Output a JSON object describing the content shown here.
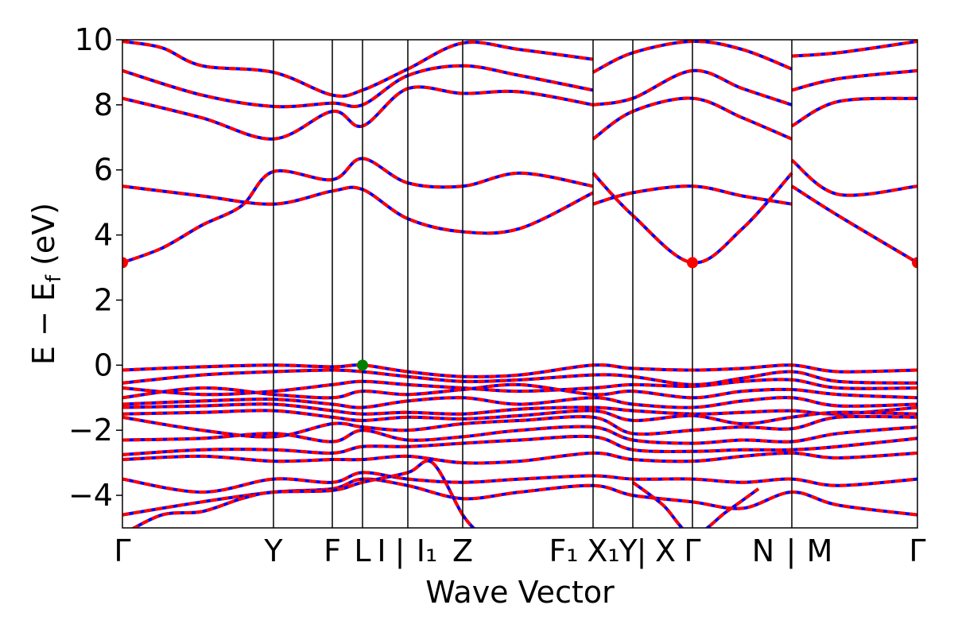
{
  "chart_data": {
    "type": "line",
    "title": "",
    "xlabel": "Wave Vector",
    "ylabel": "E − E_f (eV)",
    "ylabel_main": "E  −  E",
    "ylabel_sub": "f",
    "ylabel_tail": " (eV)",
    "ylim": [
      -5,
      10
    ],
    "yticks": [
      -4,
      -2,
      0,
      2,
      4,
      6,
      8,
      10
    ],
    "ytick_labels": [
      "−4",
      "−2",
      "0",
      "2",
      "4",
      "6",
      "8",
      "10"
    ],
    "xlim": [
      0,
      1
    ],
    "grid": false,
    "high_symmetry_labels": [
      {
        "label": "Γ",
        "x": 0.0
      },
      {
        "label": "Y",
        "x": 0.19
      },
      {
        "label": "F",
        "x": 0.264
      },
      {
        "label": "L",
        "x": 0.302
      },
      {
        "label": "I",
        "x": 0.326
      },
      {
        "label": "|",
        "x": 0.349
      },
      {
        "label": "I₁",
        "x": 0.383
      },
      {
        "label": "Z",
        "x": 0.428
      },
      {
        "label": "F₁",
        "x": 0.555
      },
      {
        "label": "X₁",
        "x": 0.605
      },
      {
        "label": "Y",
        "x": 0.636
      },
      {
        "label": "|",
        "x": 0.653
      },
      {
        "label": "X",
        "x": 0.683
      },
      {
        "label": "Γ",
        "x": 0.717
      },
      {
        "label": "N",
        "x": 0.806
      },
      {
        "label": "|",
        "x": 0.841
      },
      {
        "label": "M",
        "x": 0.877
      },
      {
        "label": "Γ",
        "x": 1.0
      }
    ],
    "vertical_lines": [
      0.19,
      0.264,
      0.302,
      0.359,
      0.428,
      0.592,
      0.642,
      0.717,
      0.842
    ],
    "band_colors": {
      "primary": "#ff0000",
      "secondary": "#0000ff"
    },
    "markers": [
      {
        "name": "cbm-left",
        "x": 0.0,
        "y": 3.15,
        "color": "#ff0000"
      },
      {
        "name": "cbm-gamma",
        "x": 0.717,
        "y": 3.15,
        "color": "#ff0000"
      },
      {
        "name": "cbm-right",
        "x": 1.0,
        "y": 3.15,
        "color": "#ff0000"
      },
      {
        "name": "vbm-L",
        "x": 0.302,
        "y": 0.0,
        "color": "#008000"
      }
    ],
    "series": [
      {
        "x": [
          0,
          0.05,
          0.1,
          0.15,
          0.19,
          0.264,
          0.302,
          0.359,
          0.428,
          0.5,
          0.592
        ],
        "values": [
          3.15,
          3.6,
          4.3,
          4.9,
          5.95,
          5.7,
          6.35,
          5.6,
          5.5,
          5.9,
          5.5
        ]
      },
      {
        "x": [
          0.592,
          0.642,
          0.717,
          0.78,
          0.842
        ],
        "values": [
          5.9,
          4.6,
          3.15,
          4.2,
          5.9
        ]
      },
      {
        "x": [
          0.842,
          0.9,
          1.0
        ],
        "values": [
          6.3,
          5.25,
          5.5
        ]
      },
      {
        "x": [
          0.842,
          0.9,
          1.0
        ],
        "values": [
          5.5,
          4.6,
          3.15
        ]
      },
      {
        "x": [
          0,
          0.1,
          0.19,
          0.264,
          0.302,
          0.359,
          0.428,
          0.5,
          0.592
        ],
        "values": [
          5.5,
          5.2,
          4.95,
          5.35,
          5.4,
          4.5,
          4.1,
          4.2,
          5.3
        ]
      },
      {
        "x": [
          0.592,
          0.642,
          0.717,
          0.78,
          0.842
        ],
        "values": [
          4.95,
          5.3,
          5.5,
          5.2,
          4.95
        ]
      },
      {
        "x": [
          0,
          0.1,
          0.19,
          0.264,
          0.302,
          0.359,
          0.428,
          0.5,
          0.592
        ],
        "values": [
          8.2,
          7.6,
          6.95,
          7.8,
          7.35,
          8.5,
          8.35,
          8.4,
          8.0
        ]
      },
      {
        "x": [
          0.592,
          0.642,
          0.717,
          0.78,
          0.842
        ],
        "values": [
          6.95,
          7.8,
          8.2,
          7.6,
          6.95
        ]
      },
      {
        "x": [
          0.842,
          0.9,
          1.0
        ],
        "values": [
          7.35,
          8.1,
          8.2
        ]
      },
      {
        "x": [
          0,
          0.1,
          0.19,
          0.264,
          0.302,
          0.359,
          0.428,
          0.5,
          0.592
        ],
        "values": [
          9.05,
          8.3,
          7.95,
          8.05,
          8.0,
          8.9,
          9.2,
          8.9,
          8.45
        ]
      },
      {
        "x": [
          0.592,
          0.642,
          0.717,
          0.78,
          0.842
        ],
        "values": [
          8.0,
          8.2,
          9.05,
          8.5,
          8.0
        ]
      },
      {
        "x": [
          0.842,
          0.9,
          1.0
        ],
        "values": [
          8.45,
          8.8,
          9.05
        ]
      },
      {
        "x": [
          0,
          0.05,
          0.1,
          0.19,
          0.264,
          0.302,
          0.359,
          0.428,
          0.5,
          0.592
        ],
        "values": [
          9.95,
          9.75,
          9.2,
          9.0,
          8.3,
          8.45,
          9.1,
          9.9,
          9.7,
          9.4
        ]
      },
      {
        "x": [
          0.592,
          0.642,
          0.717,
          0.78,
          0.842
        ],
        "values": [
          9.0,
          9.6,
          9.95,
          9.7,
          9.1
        ]
      },
      {
        "x": [
          0.842,
          0.9,
          1.0
        ],
        "values": [
          9.5,
          9.6,
          9.95
        ]
      },
      {
        "x": [
          0,
          0.1,
          0.19,
          0.264,
          0.302,
          0.359,
          0.428,
          0.5,
          0.592,
          0.642,
          0.717,
          0.78,
          0.842,
          0.9,
          1.0
        ],
        "values": [
          -0.15,
          -0.05,
          0.0,
          -0.05,
          0.0,
          -0.2,
          -0.35,
          -0.3,
          0.0,
          -0.1,
          -0.15,
          -0.1,
          0.0,
          -0.2,
          -0.15
        ]
      },
      {
        "x": [
          0,
          0.1,
          0.19,
          0.264,
          0.302,
          0.359,
          0.428,
          0.5,
          0.592,
          0.642,
          0.717,
          0.78,
          0.842,
          0.9,
          1.0
        ],
        "values": [
          -0.55,
          -0.3,
          -0.2,
          -0.15,
          -0.2,
          -0.35,
          -0.5,
          -0.45,
          -0.3,
          -0.35,
          -0.6,
          -0.4,
          -0.2,
          -0.5,
          -0.55
        ]
      },
      {
        "x": [
          0,
          0.1,
          0.19,
          0.264,
          0.302,
          0.359,
          0.428,
          0.5,
          0.592,
          0.642,
          0.717,
          0.78,
          0.842,
          0.9,
          1.0
        ],
        "values": [
          -0.7,
          -0.9,
          -0.8,
          -0.6,
          -0.5,
          -0.6,
          -0.7,
          -0.8,
          -0.7,
          -0.6,
          -0.65,
          -0.5,
          -0.45,
          -0.7,
          -0.7
        ]
      },
      {
        "x": [
          0,
          0.1,
          0.19,
          0.264,
          0.302,
          0.359,
          0.428,
          0.5,
          0.592,
          0.642,
          0.717,
          0.78,
          0.842,
          0.9,
          1.0
        ],
        "values": [
          -1.0,
          -0.7,
          -0.9,
          -1.0,
          -0.8,
          -0.9,
          -0.75,
          -0.6,
          -0.9,
          -0.8,
          -1.0,
          -0.8,
          -0.75,
          -0.9,
          -1.0
        ]
      },
      {
        "x": [
          0,
          0.1,
          0.19,
          0.264,
          0.302,
          0.359,
          0.428,
          0.5,
          0.592,
          0.642,
          0.717,
          0.78,
          0.842,
          0.9,
          1.0
        ],
        "values": [
          -1.2,
          -1.1,
          -1.05,
          -1.2,
          -1.3,
          -1.1,
          -1.0,
          -1.2,
          -1.0,
          -1.2,
          -1.3,
          -1.1,
          -1.0,
          -1.25,
          -1.2
        ]
      },
      {
        "x": [
          0,
          0.1,
          0.19,
          0.264,
          0.302,
          0.359,
          0.428,
          0.5,
          0.592,
          0.642,
          0.717,
          0.78,
          0.842,
          0.9,
          1.0
        ],
        "values": [
          -1.3,
          -1.25,
          -1.2,
          -1.4,
          -1.5,
          -1.45,
          -1.5,
          -1.35,
          -1.3,
          -1.4,
          -1.5,
          -1.45,
          -1.4,
          -1.5,
          -1.3
        ]
      },
      {
        "x": [
          0,
          0.1,
          0.19,
          0.264,
          0.302,
          0.359,
          0.428,
          0.5,
          0.592,
          0.642,
          0.717,
          0.78,
          0.842,
          0.9,
          1.0
        ],
        "values": [
          -1.5,
          -1.45,
          -1.4,
          -1.6,
          -1.7,
          -1.6,
          -1.65,
          -1.55,
          -1.4,
          -1.7,
          -1.55,
          -1.8,
          -1.6,
          -1.45,
          -1.5
        ]
      },
      {
        "x": [
          0,
          0.1,
          0.19,
          0.264,
          0.302,
          0.359,
          0.428,
          0.5,
          0.592,
          0.642,
          0.717,
          0.78,
          0.842,
          0.9,
          1.0
        ],
        "values": [
          -1.6,
          -2.0,
          -2.2,
          -1.8,
          -1.9,
          -2.0,
          -1.8,
          -1.7,
          -1.6,
          -2.1,
          -2.0,
          -1.9,
          -1.95,
          -1.6,
          -1.6
        ]
      },
      {
        "x": [
          0,
          0.1,
          0.19,
          0.264,
          0.302,
          0.359,
          0.428,
          0.5,
          0.592,
          0.642,
          0.717,
          0.78,
          0.842,
          0.9,
          1.0
        ],
        "values": [
          -2.3,
          -2.25,
          -2.1,
          -2.35,
          -2.0,
          -2.3,
          -2.2,
          -2.0,
          -1.9,
          -2.3,
          -2.4,
          -2.3,
          -2.35,
          -2.1,
          -1.9
        ]
      },
      {
        "x": [
          0,
          0.1,
          0.19,
          0.264,
          0.302,
          0.359,
          0.428,
          0.5,
          0.592,
          0.642,
          0.717,
          0.78,
          0.842,
          0.9,
          1.0
        ],
        "values": [
          -2.75,
          -2.6,
          -2.6,
          -2.7,
          -2.5,
          -2.5,
          -2.4,
          -2.3,
          -2.2,
          -2.6,
          -2.65,
          -2.6,
          -2.6,
          -2.5,
          -2.25
        ]
      },
      {
        "x": [
          0,
          0.1,
          0.19,
          0.264,
          0.302,
          0.359,
          0.428,
          0.5,
          0.592,
          0.642,
          0.717,
          0.78,
          0.842,
          0.9,
          1.0
        ],
        "values": [
          -2.9,
          -2.8,
          -2.95,
          -2.9,
          -2.9,
          -2.8,
          -3.0,
          -2.95,
          -2.7,
          -2.9,
          -2.95,
          -2.8,
          -2.7,
          -2.85,
          -2.7
        ]
      },
      {
        "x": [
          0,
          0.1,
          0.19,
          0.264,
          0.302,
          0.359,
          0.428,
          0.5,
          0.592,
          0.642,
          0.717,
          0.78,
          0.842,
          0.9,
          1.0
        ],
        "values": [
          -3.5,
          -3.9,
          -3.5,
          -3.6,
          -3.3,
          -3.5,
          -3.6,
          -3.5,
          -3.4,
          -3.5,
          -3.5,
          -3.6,
          -3.5,
          -3.7,
          -3.5
        ]
      },
      {
        "x": [
          0,
          0.1,
          0.19,
          0.264,
          0.302,
          0.359,
          0.428,
          0.5,
          0.592,
          0.642,
          0.717,
          0.78,
          0.842,
          0.9,
          1.0
        ],
        "values": [
          -4.6,
          -4.2,
          -3.9,
          -3.8,
          -3.5,
          -3.7,
          -4.1,
          -3.9,
          -3.7,
          -4.0,
          -4.2,
          -4.4,
          -3.9,
          -4.3,
          -4.6
        ]
      },
      {
        "x": [
          0,
          0.05,
          0.1,
          0.15,
          0.19,
          0.264,
          0.302,
          0.359,
          0.39,
          0.428,
          0.45
        ],
        "values": [
          -5.2,
          -4.6,
          -4.5,
          -4.1,
          -3.9,
          -3.85,
          -3.6,
          -3.3,
          -3.0,
          -4.6,
          -5.2
        ]
      },
      {
        "x": [
          0.642,
          0.68,
          0.717,
          0.76,
          0.8
        ],
        "values": [
          -3.6,
          -4.3,
          -5.2,
          -4.5,
          -3.8
        ]
      }
    ]
  }
}
